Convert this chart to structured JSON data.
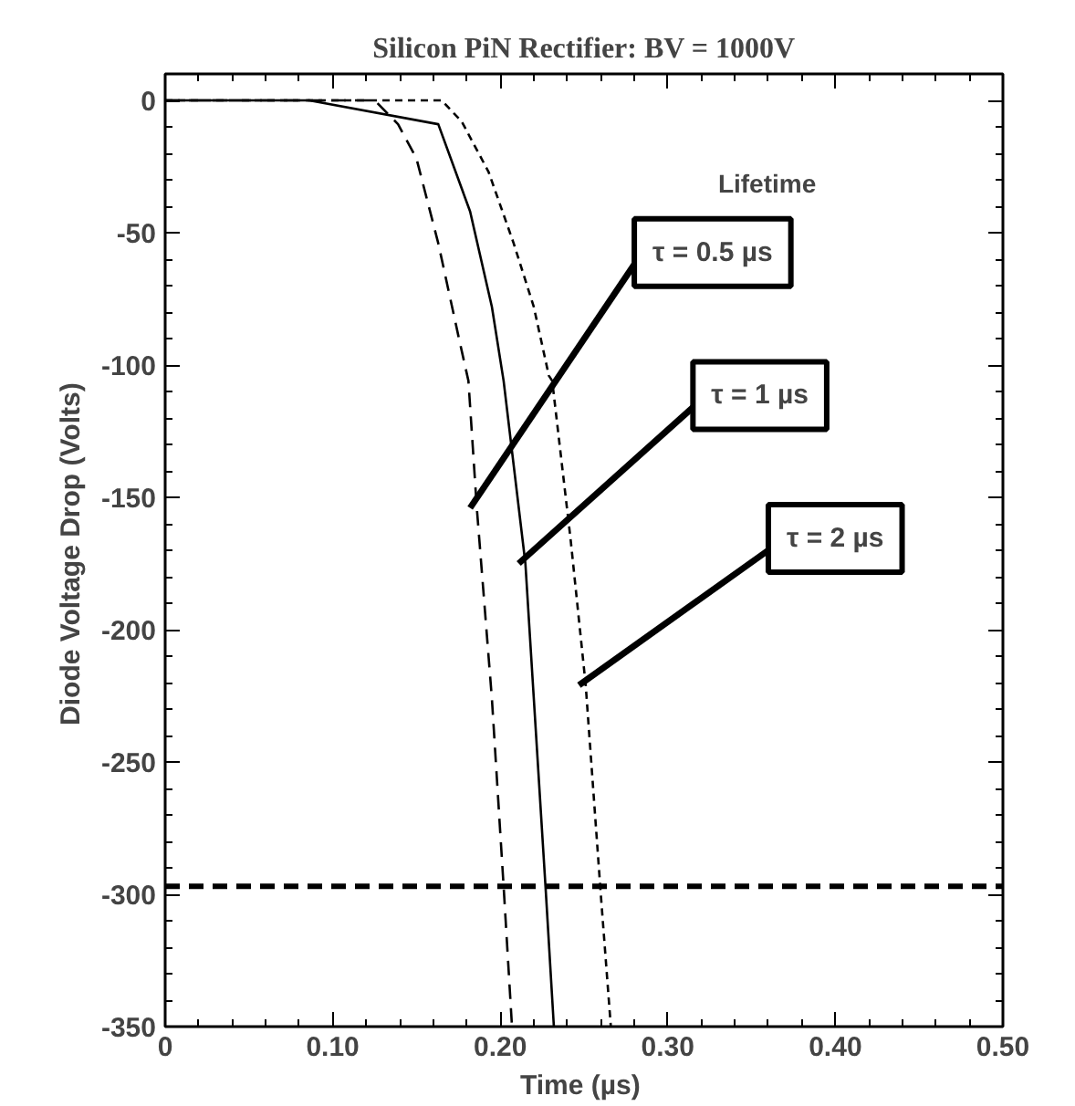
{
  "chart_data": {
    "type": "line",
    "title": "Silicon PiN Rectifier: BV = 1000V",
    "xlabel": "Time  (µs)",
    "ylabel": "Diode Voltage Drop  (Volts)",
    "legend_title": "Lifetime",
    "xlim": [
      0,
      0.5
    ],
    "xticks": [
      0,
      {
        "value": 0.1,
        "label": "0.10"
      },
      {
        "value": 0.2,
        "label": "0.20"
      },
      {
        "value": 0.3,
        "label": "0.30"
      },
      {
        "value": 0.4,
        "label": "0.40"
      },
      {
        "value": 0.5,
        "label": "0.50"
      }
    ],
    "ylim": [
      -350,
      10
    ],
    "yticks": [
      0,
      -50,
      -100,
      -150,
      -200,
      -250,
      -300,
      -350
    ],
    "grid": false,
    "legend": "center right",
    "marker": "none",
    "series": [
      {
        "name": "τ = 0.5 µs",
        "color": "#000000",
        "line_style": "dashed",
        "x": [
          0,
          0.125,
          0.139,
          0.15,
          0.163,
          0.175,
          0.181,
          0.186,
          0.195,
          0.202,
          0.207
        ],
        "values": [
          0,
          0,
          -9,
          -22,
          -54,
          -89,
          -106,
          -154,
          -226,
          -297,
          -350
        ]
      },
      {
        "name": "τ = 1 µs",
        "color": "#000000",
        "line_style": "solid",
        "x": [
          0,
          0.086,
          0.163,
          0.182,
          0.195,
          0.202,
          0.215,
          0.227,
          0.232
        ],
        "values": [
          0,
          0,
          -9,
          -42,
          -78,
          -106,
          -175,
          -297,
          -350
        ]
      },
      {
        "name": "τ = 2 µs",
        "color": "#000000",
        "line_style": "dotted",
        "x": [
          0,
          0.165,
          0.177,
          0.193,
          0.208,
          0.22,
          0.229,
          0.231,
          0.242,
          0.251,
          0.26,
          0.266
        ],
        "values": [
          0,
          0,
          -8,
          -27,
          -54,
          -78,
          -104,
          -106,
          -166,
          -221,
          -300,
          -350
        ]
      }
    ],
    "ref_lines": [
      {
        "axis": "y",
        "value": -297,
        "color": "#000000",
        "line_style": "dashed"
      }
    ]
  }
}
